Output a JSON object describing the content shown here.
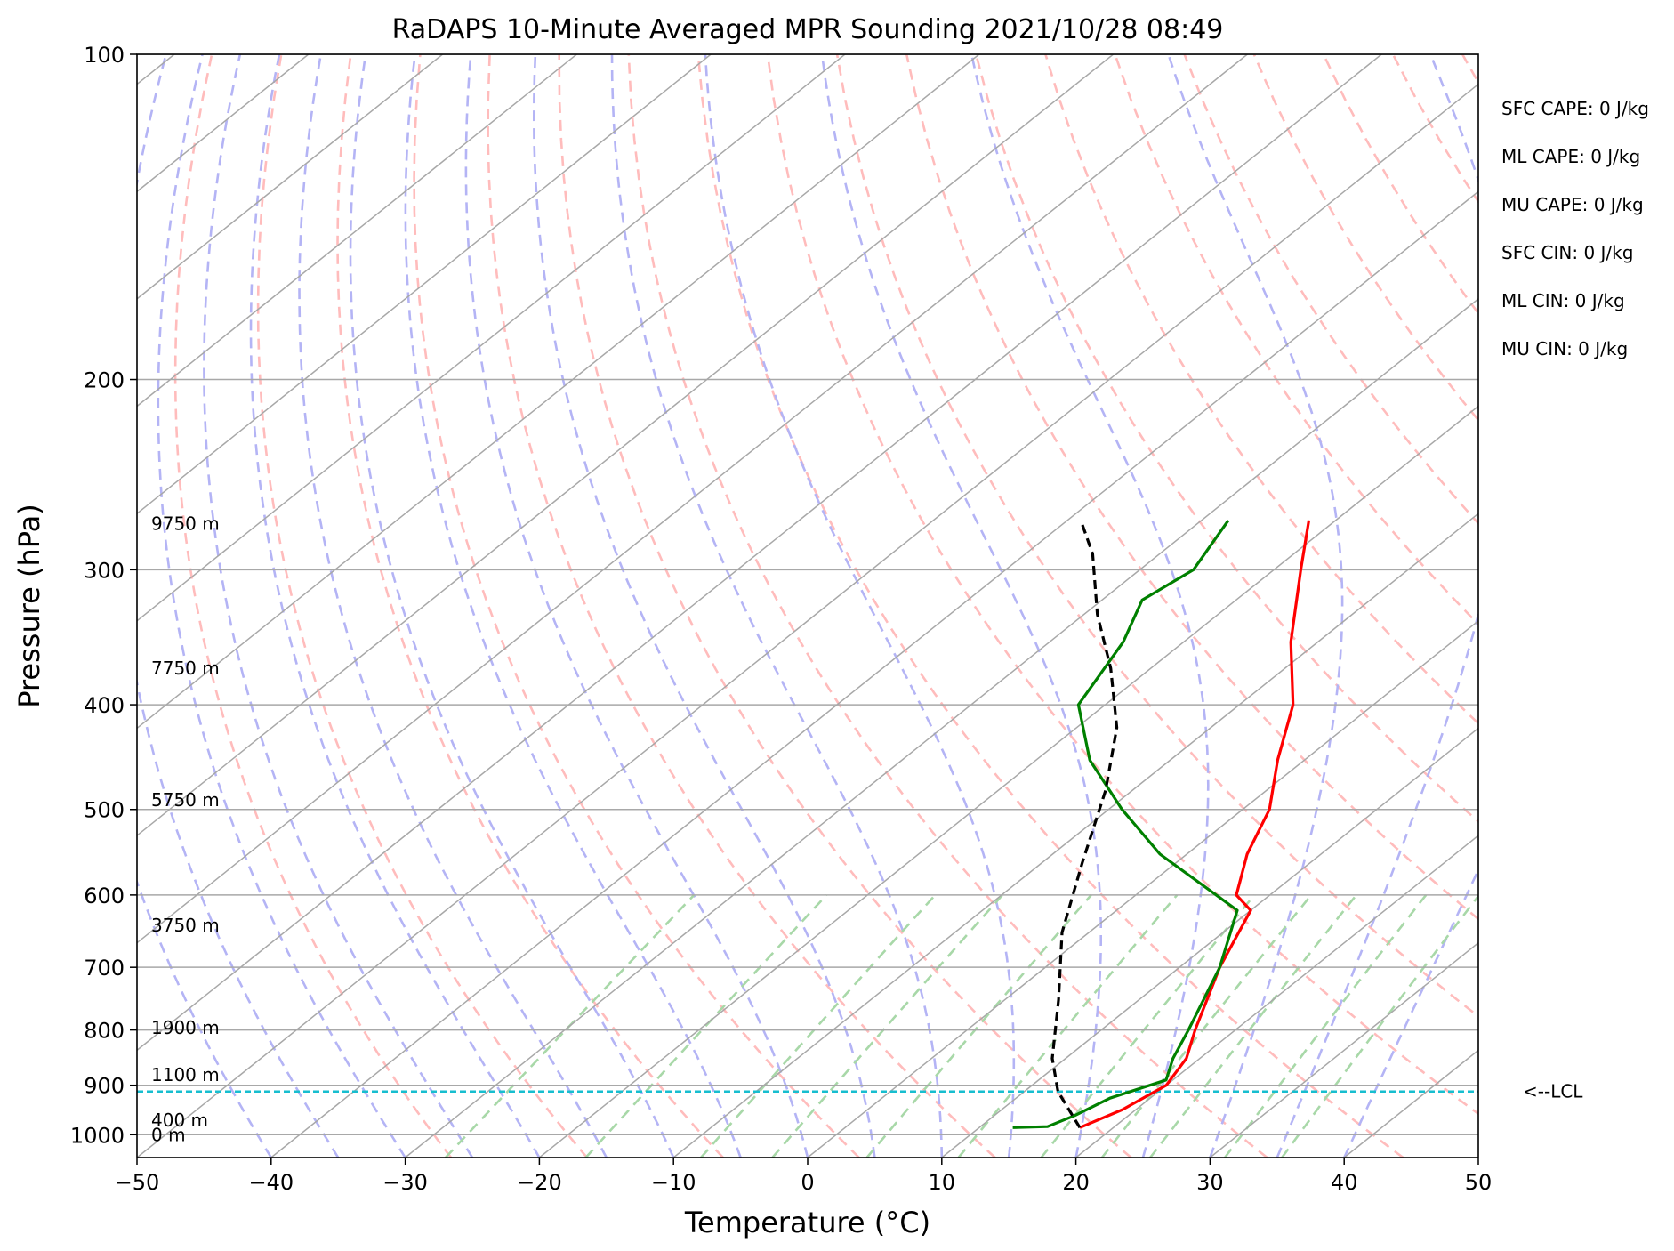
{
  "chart_data": {
    "type": "line",
    "title": "RaDAPS 10-Minute Averaged MPR Sounding 2021/10/28 08:49",
    "xlabel": "Temperature (°C)",
    "ylabel": "Pressure (hPa)",
    "xlim": [
      -50,
      50
    ],
    "ylim": [
      1050,
      100
    ],
    "y_scale": "log",
    "grid": true,
    "x_ticks": [
      "−50",
      "−40",
      "−30",
      "−20",
      "−10",
      "0",
      "10",
      "20",
      "30",
      "40",
      "50"
    ],
    "y_ticks": [
      {
        "p": 100,
        "label": "100"
      },
      {
        "p": 200,
        "label": "200"
      },
      {
        "p": 300,
        "label": "300"
      },
      {
        "p": 400,
        "label": "400"
      },
      {
        "p": 500,
        "label": "500"
      },
      {
        "p": 600,
        "label": "600"
      },
      {
        "p": 700,
        "label": "700"
      },
      {
        "p": 800,
        "label": "800"
      },
      {
        "p": 900,
        "label": "900"
      },
      {
        "p": 1000,
        "label": "1000"
      }
    ],
    "height_labels": [
      {
        "p": 272,
        "label": "9750 m"
      },
      {
        "p": 370,
        "label": "7750 m"
      },
      {
        "p": 490,
        "label": "5750 m"
      },
      {
        "p": 640,
        "label": "3750 m"
      },
      {
        "p": 796,
        "label": "1900 m"
      },
      {
        "p": 880,
        "label": "1100 m"
      },
      {
        "p": 970,
        "label": "400 m"
      },
      {
        "p": 1000,
        "label": "0 m"
      }
    ],
    "indices": [
      "SFC CAPE: 0 J/kg",
      "ML CAPE: 0 J/kg",
      "MU CAPE: 0 J/kg",
      "SFC CIN: 0 J/kg",
      "ML CIN: 0 J/kg",
      "MU CIN: 0 J/kg"
    ],
    "lcl": {
      "p": 912,
      "label": "<--LCL"
    },
    "colors": {
      "temperature": "#ff0000",
      "dewpoint": "#008000",
      "parcel": "#000000",
      "lcl": "#17becf",
      "isotherm": "#a8a8a8",
      "dry_adiabat": "#ffbcbc",
      "moist_adiabat": "#b4b4f5",
      "mixing_ratio": "#a8d8a8"
    },
    "series": [
      {
        "role": "temperature",
        "points": [
          [
            17.5,
            985
          ],
          [
            19,
            948
          ],
          [
            20,
            900
          ],
          [
            19,
            850
          ],
          [
            17,
            800
          ],
          [
            13,
            700
          ],
          [
            10,
            620
          ],
          [
            7.5,
            600
          ],
          [
            4.5,
            550
          ],
          [
            2,
            500
          ],
          [
            -2,
            450
          ],
          [
            -6,
            400
          ],
          [
            -12,
            350
          ],
          [
            -18,
            300
          ],
          [
            -22,
            270
          ]
        ]
      },
      {
        "role": "dewpoint",
        "points": [
          [
            12.5,
            985
          ],
          [
            15,
            983
          ],
          [
            16,
            960
          ],
          [
            17,
            925
          ],
          [
            19.5,
            890
          ],
          [
            18,
            850
          ],
          [
            16.5,
            800
          ],
          [
            13,
            700
          ],
          [
            9,
            620
          ],
          [
            6,
            600
          ],
          [
            -2,
            550
          ],
          [
            -9,
            500
          ],
          [
            -16,
            450
          ],
          [
            -22,
            400
          ],
          [
            -24.5,
            350
          ],
          [
            -27,
            320
          ],
          [
            -26,
            300
          ],
          [
            -28,
            270
          ]
        ]
      },
      {
        "role": "parcel",
        "points": [
          [
            17.5,
            985
          ],
          [
            12.5,
            912
          ],
          [
            9,
            850
          ],
          [
            4,
            750
          ],
          [
            -2,
            650
          ],
          [
            -7,
            560
          ],
          [
            -12,
            480
          ],
          [
            -17,
            420
          ],
          [
            -23,
            370
          ],
          [
            -29,
            330
          ],
          [
            -35,
            290
          ],
          [
            -39,
            270
          ]
        ]
      }
    ]
  }
}
